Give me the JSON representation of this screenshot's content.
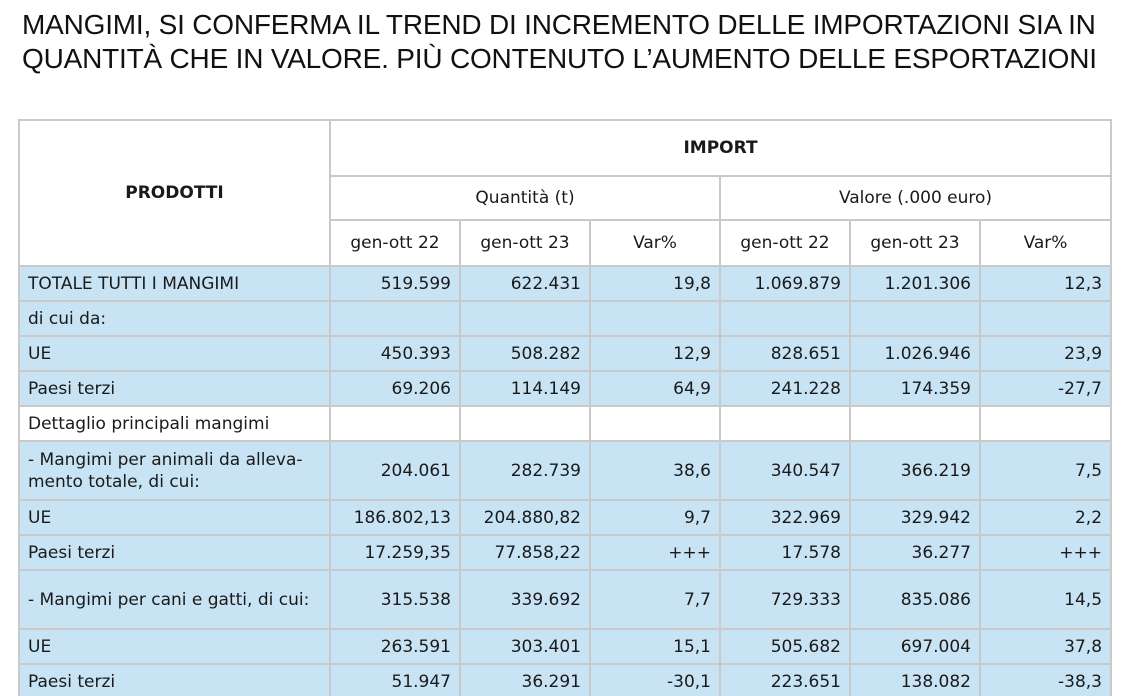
{
  "title": {
    "line1": "MANGIMI, SI CONFERMA IL TREND DI INCREMENTO DELLE IMPORTAZIONI SIA IN",
    "line2": "QUANTITÀ CHE IN VALORE. PIÙ CONTENUTO L’AUMENTO DELLE ESPORTAZIONI"
  },
  "table": {
    "header": {
      "prodotti": "PRODOTTI",
      "import": "IMPORT",
      "quantita": "Quantità (t)",
      "valore": "Valore (.000 euro)",
      "periods": [
        "gen-ott 22",
        "gen-ott 23",
        "Var%",
        "gen-ott 22",
        "gen-ott 23",
        "Var%"
      ]
    },
    "rows": [
      {
        "label": "TOTALE TUTTI I MANGIMI",
        "cells": [
          "519.599",
          "622.431",
          "19,8",
          "1.069.879",
          "1.201.306",
          "12,3"
        ]
      },
      {
        "label": "di cui da:",
        "cells": [
          "",
          "",
          "",
          "",
          "",
          ""
        ]
      },
      {
        "label": "UE",
        "cells": [
          "450.393",
          "508.282",
          "12,9",
          "828.651",
          "1.026.946",
          "23,9"
        ]
      },
      {
        "label": "Paesi terzi",
        "cells": [
          "69.206",
          "114.149",
          "64,9",
          "241.228",
          "174.359",
          "-27,7"
        ]
      },
      {
        "label": "Dettaglio principali mangimi",
        "cells": [
          "",
          "",
          "",
          "",
          "",
          ""
        ]
      },
      {
        "label": " - Mangimi per animali da alleva-mento totale, di cui:",
        "cells": [
          "204.061",
          "282.739",
          "38,6",
          "340.547",
          "366.219",
          "7,5"
        ]
      },
      {
        "label": "UE",
        "cells": [
          "186.802,13",
          "204.880,82",
          "9,7",
          "322.969",
          "329.942",
          "2,2"
        ]
      },
      {
        "label": "Paesi terzi",
        "cells": [
          "17.259,35",
          "77.858,22",
          "+++",
          "17.578",
          "36.277",
          "+++"
        ]
      },
      {
        "label": " - Mangimi per cani e gatti, di cui:",
        "cells": [
          "315.538",
          "339.692",
          "7,7",
          "729.333",
          "835.086",
          "14,5"
        ]
      },
      {
        "label": "UE",
        "cells": [
          "263.591",
          "303.401",
          "15,1",
          "505.682",
          "697.004",
          "37,8"
        ]
      },
      {
        "label": "Paesi terzi",
        "cells": [
          "51.947",
          "36.291",
          "-30,1",
          "223.651",
          "138.082",
          "-38,3"
        ]
      }
    ]
  },
  "colors": {
    "row_blue": "#c7e3f4",
    "border": "#c9c9c9"
  }
}
